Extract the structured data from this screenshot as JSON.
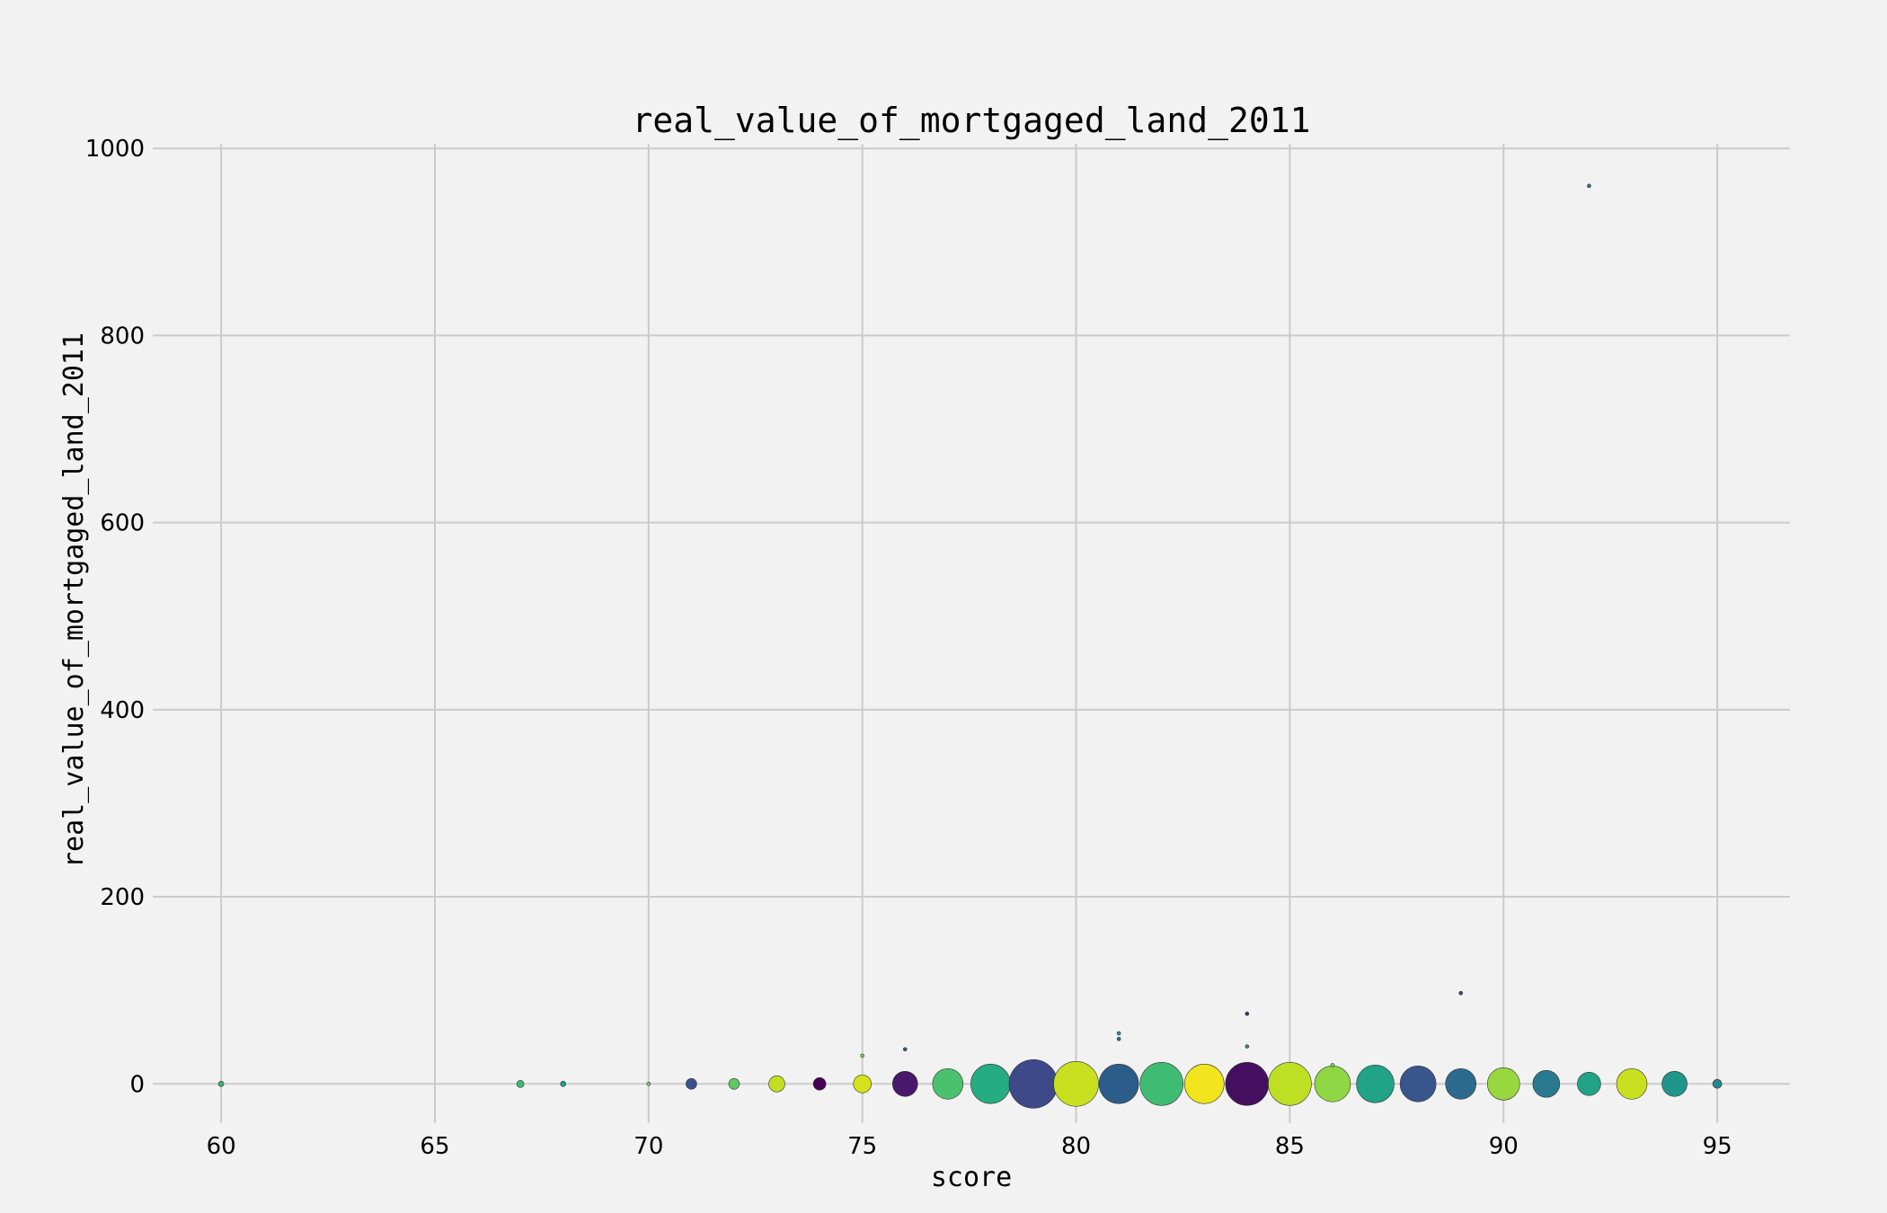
{
  "chart_data": {
    "type": "scatter",
    "title": "real_value_of_mortgaged_land_2011",
    "xlabel": "score",
    "ylabel": "real_value_of_mortgaged_land_2011",
    "xlim": [
      58.4,
      96.7
    ],
    "ylim": [
      -42,
      1005
    ],
    "x_ticks": [
      60,
      65,
      70,
      75,
      80,
      85,
      90,
      95
    ],
    "y_ticks": [
      0,
      200,
      400,
      600,
      800,
      1000
    ],
    "grid": true,
    "legend": "none",
    "note_size": "bubble size encodes relative magnitude",
    "points": [
      {
        "x": 60,
        "y": 0,
        "size": 3,
        "color": "#35b779"
      },
      {
        "x": 67,
        "y": 0,
        "size": 4,
        "color": "#3fbc73"
      },
      {
        "x": 68,
        "y": 0,
        "size": 3,
        "color": "#1f9e89"
      },
      {
        "x": 70,
        "y": 0,
        "size": 2,
        "color": "#7ad151"
      },
      {
        "x": 71,
        "y": 0,
        "size": 6,
        "color": "#3b528b"
      },
      {
        "x": 72,
        "y": 0,
        "size": 6,
        "color": "#5ec962"
      },
      {
        "x": 73,
        "y": 0,
        "size": 9,
        "color": "#c2df23"
      },
      {
        "x": 74,
        "y": 0,
        "size": 7,
        "color": "#440154"
      },
      {
        "x": 75,
        "y": 0,
        "size": 10,
        "color": "#d2e21b"
      },
      {
        "x": 75,
        "y": 30,
        "size": 2,
        "color": "#7ad151"
      },
      {
        "x": 76,
        "y": 0,
        "size": 14,
        "color": "#48186a"
      },
      {
        "x": 76,
        "y": 37,
        "size": 2,
        "color": "#3b528b"
      },
      {
        "x": 77,
        "y": 0,
        "size": 17,
        "color": "#4ac16d"
      },
      {
        "x": 78,
        "y": 0,
        "size": 22,
        "color": "#25ac82"
      },
      {
        "x": 79,
        "y": 0,
        "size": 27,
        "color": "#3e4989"
      },
      {
        "x": 80,
        "y": 0,
        "size": 25,
        "color": "#c8e020"
      },
      {
        "x": 81,
        "y": 0,
        "size": 22,
        "color": "#2c5c8a"
      },
      {
        "x": 81,
        "y": 48,
        "size": 2,
        "color": "#2c728e"
      },
      {
        "x": 81,
        "y": 54,
        "size": 2,
        "color": "#1f9e89"
      },
      {
        "x": 82,
        "y": 0,
        "size": 24,
        "color": "#3fbc73"
      },
      {
        "x": 83,
        "y": 0,
        "size": 22,
        "color": "#f2e51d"
      },
      {
        "x": 84,
        "y": 0,
        "size": 24,
        "color": "#450f60"
      },
      {
        "x": 84,
        "y": 40,
        "size": 2,
        "color": "#21908d"
      },
      {
        "x": 84,
        "y": 75,
        "size": 2,
        "color": "#31357d"
      },
      {
        "x": 85,
        "y": 0,
        "size": 24,
        "color": "#bfdf25"
      },
      {
        "x": 86,
        "y": 0,
        "size": 20,
        "color": "#8fd744"
      },
      {
        "x": 86,
        "y": 20,
        "size": 2,
        "color": "#7ad151"
      },
      {
        "x": 87,
        "y": 0,
        "size": 21,
        "color": "#20a386"
      },
      {
        "x": 88,
        "y": 0,
        "size": 20,
        "color": "#39568c"
      },
      {
        "x": 89,
        "y": 0,
        "size": 17,
        "color": "#2d6a8e"
      },
      {
        "x": 89,
        "y": 97,
        "size": 2,
        "color": "#433e85"
      },
      {
        "x": 90,
        "y": 0,
        "size": 18,
        "color": "#98d83e"
      },
      {
        "x": 91,
        "y": 0,
        "size": 15,
        "color": "#297a8e"
      },
      {
        "x": 92,
        "y": 0,
        "size": 13,
        "color": "#20a386"
      },
      {
        "x": 92,
        "y": 960,
        "size": 2,
        "color": "#2a788e"
      },
      {
        "x": 93,
        "y": 0,
        "size": 17,
        "color": "#c8e020"
      },
      {
        "x": 94,
        "y": 0,
        "size": 14,
        "color": "#1f968b"
      },
      {
        "x": 95,
        "y": 0,
        "size": 5,
        "color": "#23898e"
      }
    ]
  }
}
